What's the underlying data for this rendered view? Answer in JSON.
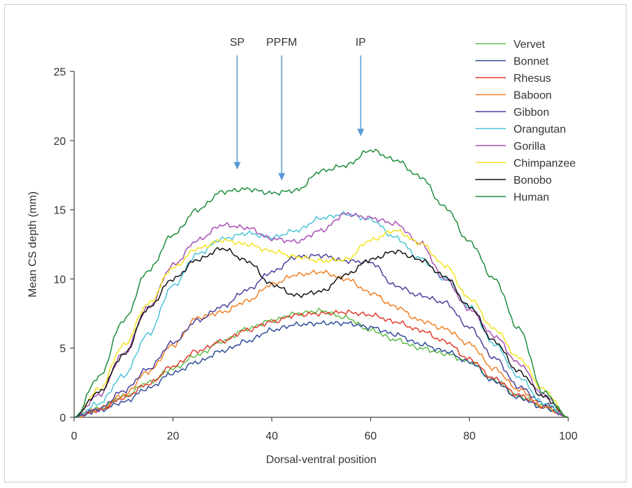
{
  "chart_data": {
    "type": "line",
    "title": "",
    "xlabel": "Dorsal-ventral position",
    "ylabel": "Mean CS depth (mm)",
    "xlim": [
      0,
      100
    ],
    "ylim": [
      0,
      25
    ],
    "x_ticks": [
      0,
      20,
      40,
      60,
      80,
      100
    ],
    "y_ticks": [
      0,
      5,
      10,
      15,
      20,
      25
    ],
    "grid": false,
    "legend_position": "top-right",
    "annotations": [
      {
        "label": "SP",
        "x": 33,
        "arrow_tip_y": 17.9
      },
      {
        "label": "PPFM",
        "x": 42,
        "arrow_tip_y": 17.1
      },
      {
        "label": "IP",
        "x": 58,
        "arrow_tip_y": 20.3
      }
    ],
    "annotation_color": "#5b9bd5",
    "x": [
      0,
      5,
      10,
      15,
      20,
      25,
      30,
      35,
      40,
      45,
      50,
      55,
      60,
      65,
      70,
      75,
      80,
      85,
      90,
      95,
      100
    ],
    "series": [
      {
        "name": "Vervet",
        "color": "#5dbb46",
        "values": [
          0,
          0.6,
          1.5,
          2.5,
          3.5,
          4.5,
          5.5,
          6.4,
          7.0,
          7.5,
          7.7,
          7.2,
          6.3,
          5.6,
          5.0,
          4.6,
          4.0,
          2.7,
          1.5,
          0.8,
          0
        ]
      },
      {
        "name": "Bonnet",
        "color": "#2e4b9a",
        "values": [
          0,
          0.5,
          1.1,
          2.1,
          3.2,
          4.0,
          4.8,
          5.5,
          6.3,
          6.7,
          6.8,
          6.8,
          6.5,
          6.0,
          5.3,
          4.8,
          4.0,
          2.6,
          1.4,
          0.7,
          0
        ]
      },
      {
        "name": "Rhesus",
        "color": "#e03a2b",
        "values": [
          0,
          0.5,
          1.4,
          2.4,
          3.7,
          4.8,
          5.5,
          6.3,
          6.9,
          7.4,
          7.5,
          7.6,
          7.4,
          6.9,
          6.3,
          5.5,
          4.2,
          2.8,
          1.6,
          0.8,
          0
        ]
      },
      {
        "name": "Baboon",
        "color": "#f07f22",
        "values": [
          0,
          0.6,
          1.6,
          3.3,
          5.2,
          7.2,
          7.6,
          8.4,
          9.6,
          10.3,
          10.5,
          10.0,
          9.0,
          8.0,
          7.0,
          6.4,
          5.3,
          3.5,
          2.0,
          0.8,
          0
        ]
      },
      {
        "name": "Gibbon",
        "color": "#4b3f9e",
        "values": [
          0,
          0.6,
          1.9,
          3.5,
          5.4,
          7.0,
          8.0,
          9.2,
          10.5,
          11.6,
          11.7,
          11.3,
          11.2,
          9.5,
          8.8,
          8.3,
          6.5,
          4.3,
          2.2,
          1.0,
          0
        ]
      },
      {
        "name": "Orangutan",
        "color": "#4cc3d9",
        "values": [
          0,
          1.0,
          3.0,
          6.0,
          9.5,
          11.8,
          12.9,
          13.3,
          13.0,
          13.5,
          14.4,
          14.7,
          14.3,
          13.0,
          11.5,
          10.0,
          8.0,
          5.3,
          2.9,
          1.0,
          0
        ]
      },
      {
        "name": "Gorilla",
        "color": "#a84fb3",
        "values": [
          0,
          1.6,
          4.6,
          7.9,
          11.0,
          12.8,
          13.9,
          13.7,
          12.9,
          12.7,
          13.5,
          14.7,
          14.4,
          14.0,
          12.6,
          10.0,
          7.8,
          5.9,
          3.9,
          1.6,
          0
        ]
      },
      {
        "name": "Chimpanzee",
        "color": "#f2e41c",
        "values": [
          0,
          2.0,
          5.2,
          8.2,
          10.8,
          12.2,
          12.8,
          12.5,
          12.0,
          11.6,
          11.3,
          11.4,
          12.8,
          13.5,
          12.6,
          11.0,
          8.6,
          6.4,
          4.3,
          2.0,
          0
        ]
      },
      {
        "name": "Bonobo",
        "color": "#111111",
        "values": [
          0,
          1.8,
          4.5,
          7.9,
          10.0,
          11.4,
          12.2,
          11.3,
          9.6,
          8.8,
          9.1,
          10.3,
          11.4,
          12.0,
          11.4,
          10.2,
          8.0,
          5.5,
          3.3,
          1.5,
          0
        ]
      },
      {
        "name": "Human",
        "color": "#1c8c3c",
        "values": [
          0,
          2.9,
          7.0,
          10.6,
          13.2,
          15.0,
          16.3,
          16.5,
          16.2,
          16.4,
          17.8,
          18.2,
          19.3,
          18.6,
          17.4,
          15.2,
          12.7,
          10.0,
          6.4,
          1.8,
          0
        ]
      }
    ]
  }
}
